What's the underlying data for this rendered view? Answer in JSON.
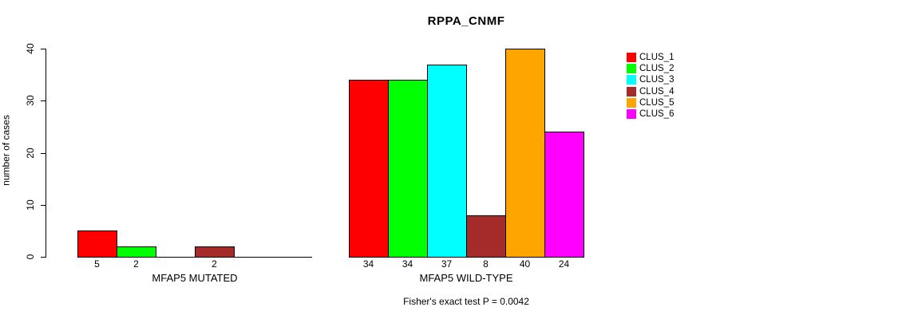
{
  "title": "RPPA_CNMF",
  "chart_data": {
    "type": "bar",
    "title": "RPPA_CNMF",
    "ylabel": "number of cases",
    "xlabel": "",
    "ylim": [
      0,
      40
    ],
    "yticks": [
      0,
      10,
      20,
      30,
      40
    ],
    "grid": false,
    "legend_position": "right",
    "categories": [
      "CLUS_1",
      "CLUS_2",
      "CLUS_3",
      "CLUS_4",
      "CLUS_5",
      "CLUS_6"
    ],
    "colors": [
      "#FF0000",
      "#00FF00",
      "#00FFFF",
      "#A52A2A",
      "#FFA500",
      "#FF00FF"
    ],
    "groups": [
      {
        "label": "MFAP5 MUTATED",
        "values": [
          5,
          2,
          0,
          2,
          0,
          0
        ]
      },
      {
        "label": "MFAP5 WILD-TYPE",
        "values": [
          34,
          34,
          37,
          8,
          40,
          24
        ]
      }
    ],
    "bar_value_labels_shown_for_nonzero_only": true,
    "annotation": "Fisher's exact test P = 0.0042"
  }
}
